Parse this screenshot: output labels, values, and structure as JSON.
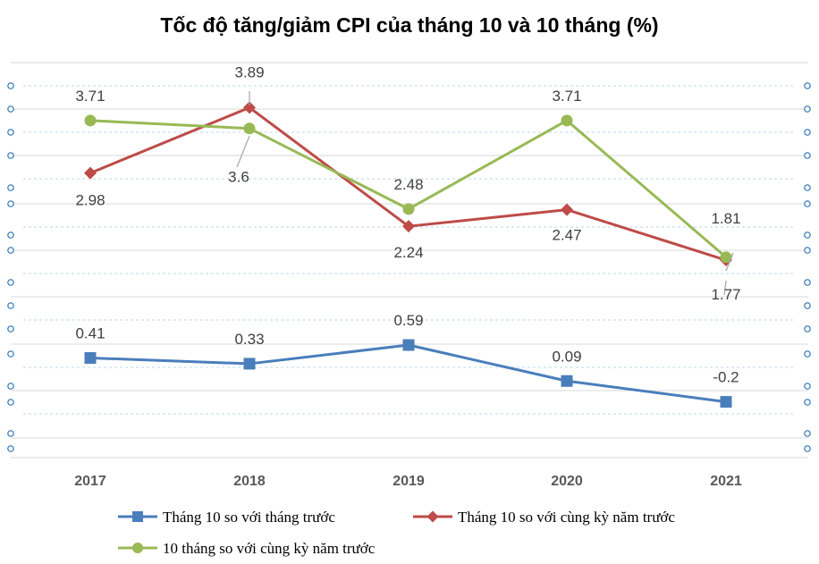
{
  "chart_data": {
    "type": "line",
    "title": "Tốc độ tăng/giảm CPI của tháng 10 và 10 tháng (%)",
    "categories": [
      "2017",
      "2018",
      "2019",
      "2020",
      "2021"
    ],
    "xlabel": "",
    "ylabel": "",
    "ylim": [
      -0.6,
      4.6
    ],
    "grid": true,
    "legend": "bottom",
    "series": [
      {
        "name": "Tháng 10 so với tháng trước",
        "values": [
          0.41,
          0.33,
          0.59,
          0.09,
          -0.2
        ],
        "labels": [
          "0.41",
          "0.33",
          "0.59",
          "0.09",
          "-0.2"
        ],
        "color": "#4a7ebb",
        "marker": "square"
      },
      {
        "name": "Tháng 10 so với cùng kỳ năm trước",
        "values": [
          2.98,
          3.89,
          2.24,
          2.47,
          1.77
        ],
        "labels": [
          "2.98",
          "3.89",
          "2.24",
          "2.47",
          "1.77"
        ],
        "color": "#be4b48",
        "marker": "diamond"
      },
      {
        "name": "10 tháng so với cùng kỳ năm trước",
        "values": [
          3.71,
          3.6,
          2.48,
          3.71,
          1.81
        ],
        "labels": [
          "3.71",
          "3.6",
          "2.48",
          "3.71",
          "1.81"
        ],
        "color": "#98b954",
        "marker": "circle"
      }
    ]
  }
}
